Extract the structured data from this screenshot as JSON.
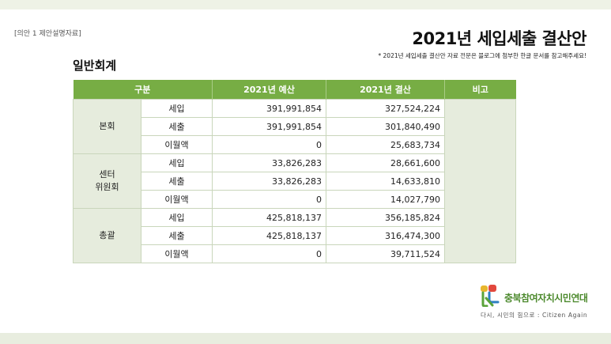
{
  "doc": {
    "tag": "[의안 1 제안설명자료]",
    "title": "2021년 세입세출 결산안",
    "note": "* 2021년 세입세출 결산안 자료 전문은 블로그에 첨부한 한글 문서를 참고해주세요!",
    "section": "일반회계"
  },
  "table": {
    "headers": {
      "category": "구분",
      "budget": "2021년 예산",
      "settlement": "2021년 결산",
      "memo": "비고"
    },
    "groups": [
      {
        "label": "본회",
        "rows": [
          {
            "type": "세입",
            "budget": "391,991,854",
            "settlement": "327,524,224"
          },
          {
            "type": "세출",
            "budget": "391,991,854",
            "settlement": "301,840,490"
          },
          {
            "type": "이월액",
            "budget": "0",
            "settlement": "25,683,734"
          }
        ]
      },
      {
        "label_line1": "센터",
        "label_line2": "위원회",
        "rows": [
          {
            "type": "세입",
            "budget": "33,826,283",
            "settlement": "28,661,600"
          },
          {
            "type": "세출",
            "budget": "33,826,283",
            "settlement": "14,633,810"
          },
          {
            "type": "이월액",
            "budget": "0",
            "settlement": "14,027,790"
          }
        ]
      },
      {
        "label": "총괄",
        "rows": [
          {
            "type": "세입",
            "budget": "425,818,137",
            "settlement": "356,185,824"
          },
          {
            "type": "세출",
            "budget": "425,818,137",
            "settlement": "316,474,300"
          },
          {
            "type": "이월액",
            "budget": "0",
            "settlement": "39,711,524"
          }
        ]
      }
    ]
  },
  "footer": {
    "org_name": "충북참여자치시민연대",
    "slogan": "다시, 시민의 힘으로 : Citizen Again",
    "logo_icon": "citizen-logo-icon"
  },
  "colors": {
    "header_green": "#77ad44",
    "group_bg": "#e6ecdd",
    "brand_green": "#4d8a2e"
  }
}
